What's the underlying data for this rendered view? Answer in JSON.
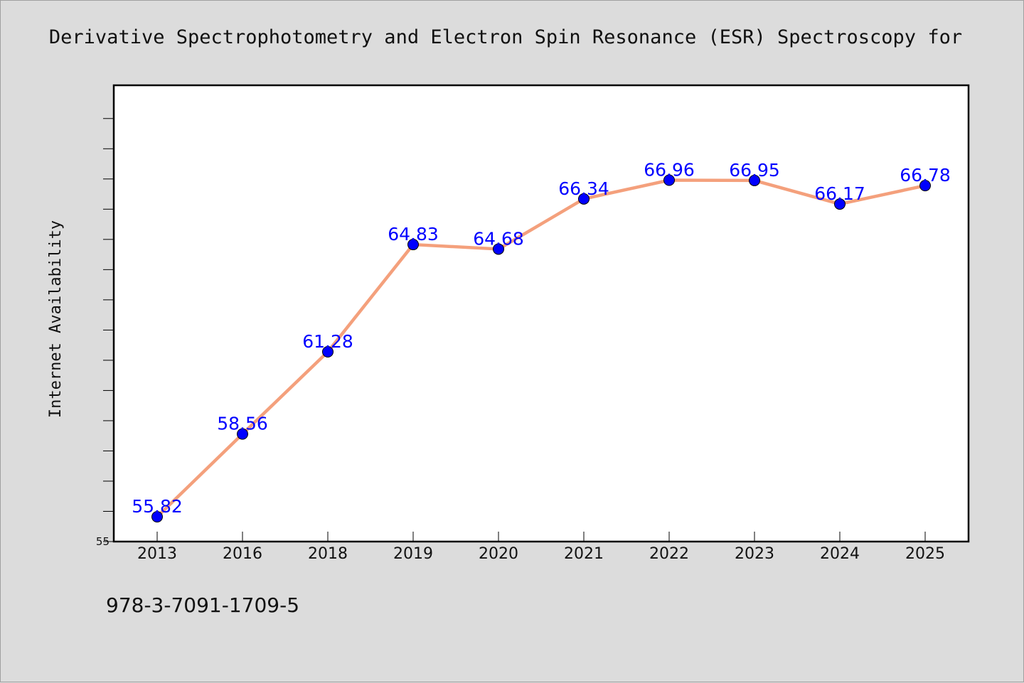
{
  "chart_data": {
    "type": "line",
    "title": "Derivative Spectrophotometry and Electron Spin Resonance (ESR) Spectroscopy for",
    "xlabel": "",
    "ylabel": "Internet Availability",
    "categories": [
      "2013",
      "2016",
      "2018",
      "2019",
      "2020",
      "2021",
      "2022",
      "2023",
      "2024",
      "2025"
    ],
    "series": [
      {
        "values": [
          55.82,
          58.56,
          61.28,
          64.83,
          64.68,
          66.34,
          66.96,
          66.95,
          66.17,
          66.78
        ],
        "data_labels": [
          "55.82",
          "58.56",
          "61.28",
          "64.83",
          "64.68",
          "66.34",
          "66.96",
          "66.95",
          "66.17",
          "66.78"
        ]
      }
    ],
    "ylim": [
      55,
      70.1
    ],
    "y_tick_labels": [
      "55"
    ],
    "grid": false,
    "legend": "none",
    "line_color": "#f4a07c",
    "marker_color": "#0000ff",
    "label_color": "#0000ff"
  },
  "footer": {
    "isbn": "978-3-7091-1709-5"
  }
}
